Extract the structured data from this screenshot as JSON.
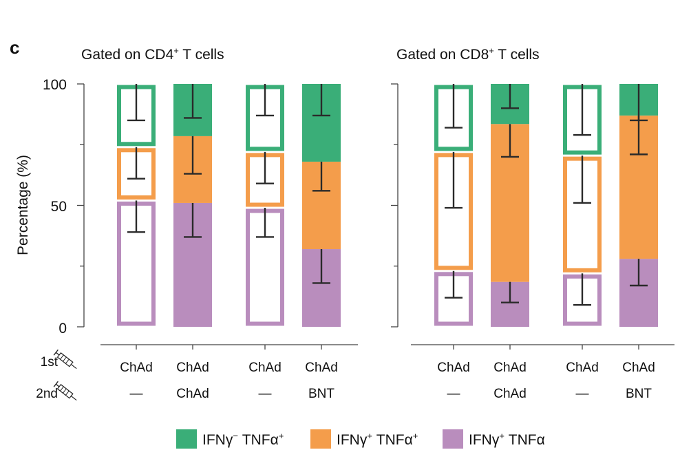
{
  "figure": {
    "panel_label": "c",
    "ylabel": "Percentage (%)",
    "yticks": [
      "100",
      "50",
      "0"
    ],
    "row_labels": {
      "first": "1st",
      "second": "2nd",
      "icon": "syringe-icon"
    }
  },
  "legend": [
    {
      "label_main": "IFNγ",
      "sup1": "−",
      "label_mid": " TNFα",
      "sup2": "+",
      "color": "#3aae78"
    },
    {
      "label_main": "IFNγ",
      "sup1": "+",
      "label_mid": " TNFα",
      "sup2": "+",
      "color": "#f49d4b"
    },
    {
      "label_main": "IFNγ",
      "sup1": "+",
      "label_mid": " TNFα",
      "sup2": "",
      "color": "#b98dbd"
    }
  ],
  "colors": {
    "tnf_only": "#3aae78",
    "double": "#f49d4b",
    "ifn_only": "#b98dbd",
    "axis": "#444444",
    "errorbar": "#2a2a2a"
  },
  "chart_data": [
    {
      "type": "bar",
      "stacked": true,
      "title_pre": "Gated on CD4",
      "title_sup": "+",
      "title_post": " T cells",
      "ylim": [
        0,
        100
      ],
      "categories": [
        {
          "first": "ChAd",
          "second": "—",
          "style": "outline"
        },
        {
          "first": "ChAd",
          "second": "ChAd",
          "style": "filled"
        },
        {
          "first": "ChAd",
          "second": "—",
          "style": "outline"
        },
        {
          "first": "ChAd",
          "second": "BNT",
          "style": "filled"
        }
      ],
      "series": [
        {
          "key": "ifn_only",
          "values": [
            52,
            51,
            49,
            32
          ],
          "err_low": [
            39,
            37,
            37,
            18
          ]
        },
        {
          "key": "double",
          "values": [
            22,
            27.5,
            23,
            36
          ],
          "err_low": [
            61,
            63,
            59,
            56
          ]
        },
        {
          "key": "tnf_only",
          "values": [
            26,
            21.5,
            28,
            32
          ],
          "err_low": [
            85,
            86,
            87,
            87
          ]
        }
      ]
    },
    {
      "type": "bar",
      "stacked": true,
      "title_pre": "Gated on CD8",
      "title_sup": "+",
      "title_post": " T cells",
      "ylim": [
        0,
        100
      ],
      "categories": [
        {
          "first": "ChAd",
          "second": "—",
          "style": "outline"
        },
        {
          "first": "ChAd",
          "second": "ChAd",
          "style": "filled"
        },
        {
          "first": "ChAd",
          "second": "—",
          "style": "outline"
        },
        {
          "first": "ChAd",
          "second": "BNT",
          "style": "filled"
        }
      ],
      "series": [
        {
          "key": "ifn_only",
          "values": [
            23,
            18.5,
            22,
            28
          ],
          "err_low": [
            12,
            10,
            9,
            17
          ]
        },
        {
          "key": "double",
          "values": [
            49,
            65,
            48.5,
            59
          ],
          "err_low": [
            49,
            70,
            51,
            71
          ]
        },
        {
          "key": "tnf_only",
          "values": [
            28,
            16.5,
            29.5,
            13
          ],
          "err_low": [
            82,
            90,
            79,
            85
          ]
        }
      ]
    }
  ]
}
